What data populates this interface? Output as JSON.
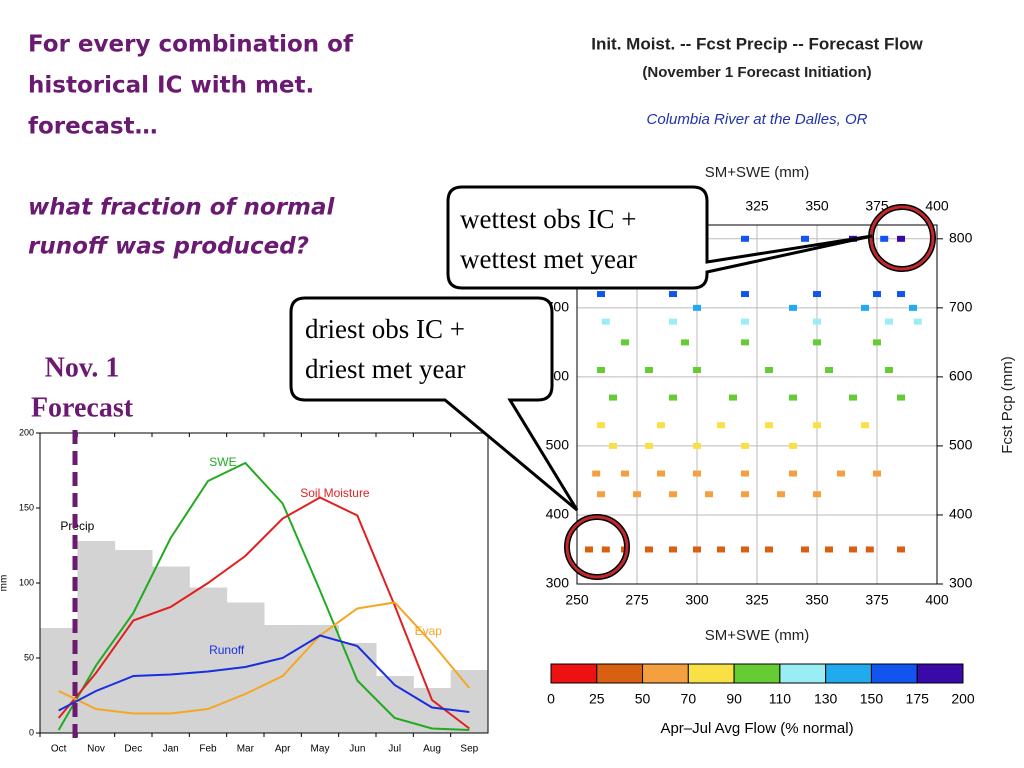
{
  "slide": {
    "heading": [
      "For every combination of",
      "historical IC with met.",
      "forecast…"
    ],
    "question": [
      "what fraction of normal",
      "runoff was produced?"
    ],
    "forecast_label": [
      "Nov. 1",
      "Forecast"
    ],
    "callouts": [
      {
        "lines": [
          "wettest obs IC +",
          "wettest met year"
        ]
      },
      {
        "lines": [
          "driest obs IC +",
          "driest met year"
        ]
      }
    ]
  },
  "chart_data": [
    {
      "type": "line",
      "categories": [
        "Oct",
        "Nov",
        "Dec",
        "Jan",
        "Feb",
        "Mar",
        "Apr",
        "May",
        "Jun",
        "Jul",
        "Aug",
        "Sep"
      ],
      "ylabel": "mm",
      "ylim": [
        0,
        200
      ],
      "yticks": [
        0,
        50,
        100,
        150,
        200
      ],
      "series": [
        {
          "name": "Precip",
          "kind": "step",
          "color": "#d3d3d3",
          "values": [
            70,
            128,
            122,
            111,
            97,
            87,
            72,
            72,
            60,
            38,
            30,
            42
          ]
        },
        {
          "name": "SWE",
          "color": "#22aa22",
          "values": [
            2,
            45,
            80,
            130,
            168,
            180,
            153,
            95,
            35,
            10,
            3,
            2
          ]
        },
        {
          "name": "Soil Moisture",
          "color": "#e02020",
          "values": [
            10,
            40,
            75,
            84,
            100,
            118,
            143,
            157,
            145,
            85,
            22,
            3
          ]
        },
        {
          "name": "Evap",
          "color": "#f5a623",
          "values": [
            28,
            16,
            13,
            13,
            16,
            26,
            38,
            65,
            83,
            87,
            60,
            30
          ]
        },
        {
          "name": "Runoff",
          "color": "#1a2ee0",
          "values": [
            15,
            28,
            38,
            39,
            41,
            44,
            50,
            65,
            58,
            32,
            17,
            14
          ]
        }
      ]
    },
    {
      "type": "scatter",
      "title": "Init. Moist. -- Fcst Precip -- Forecast Flow",
      "subtitle": "(November 1 Forecast Initiation)",
      "location": "Columbia River at the Dalles, OR",
      "xlabel": "SM+SWE (mm)",
      "ylabel": "Fcst Pcp (mm)",
      "xlim": [
        250,
        400
      ],
      "xticks": [
        250,
        275,
        300,
        325,
        350,
        375,
        400
      ],
      "ylim": [
        300,
        820
      ],
      "yticks": [
        300,
        400,
        500,
        600,
        700,
        800
      ],
      "grid": true,
      "series": [
        {
          "x": [
            255,
            262,
            270,
            280,
            290,
            300,
            310,
            320,
            330,
            345,
            355,
            365,
            372,
            385,
            260,
            275,
            290,
            305,
            320,
            335,
            350,
            258,
            270,
            285,
            300,
            320,
            340,
            360,
            375,
            265,
            280,
            300,
            320,
            340,
            260,
            285,
            310,
            330,
            350,
            370,
            265,
            290,
            315,
            340,
            365,
            385,
            260,
            280,
            300,
            330,
            355,
            380,
            270,
            295,
            320,
            350,
            375,
            262,
            290,
            320,
            350,
            380,
            392,
            300,
            340,
            370,
            390,
            260,
            290,
            320,
            350,
            375,
            385,
            262,
            290,
            320,
            345,
            365,
            378,
            385
          ],
          "y": [
            350,
            350,
            350,
            350,
            350,
            350,
            350,
            350,
            350,
            350,
            350,
            350,
            350,
            350,
            430,
            430,
            430,
            430,
            430,
            430,
            430,
            460,
            460,
            460,
            460,
            460,
            460,
            460,
            460,
            500,
            500,
            500,
            500,
            500,
            530,
            530,
            530,
            530,
            530,
            530,
            570,
            570,
            570,
            570,
            570,
            570,
            610,
            610,
            610,
            610,
            610,
            610,
            650,
            650,
            650,
            650,
            650,
            680,
            680,
            680,
            680,
            680,
            680,
            700,
            700,
            700,
            700,
            720,
            720,
            720,
            720,
            720,
            720,
            800,
            800,
            800,
            800,
            800,
            800,
            800
          ],
          "flow": [
            40,
            40,
            40,
            40,
            40,
            40,
            40,
            40,
            40,
            40,
            40,
            40,
            40,
            40,
            55,
            55,
            55,
            55,
            55,
            55,
            55,
            62,
            62,
            62,
            62,
            62,
            62,
            62,
            62,
            78,
            78,
            78,
            78,
            78,
            85,
            85,
            85,
            85,
            85,
            85,
            98,
            98,
            98,
            98,
            98,
            98,
            102,
            102,
            102,
            102,
            102,
            102,
            106,
            106,
            106,
            106,
            106,
            118,
            118,
            118,
            118,
            118,
            118,
            140,
            140,
            140,
            140,
            160,
            160,
            160,
            160,
            160,
            160,
            165,
            165,
            165,
            165,
            180,
            170,
            190
          ]
        }
      ],
      "colorbar": {
        "label": "Apr–Jul Avg Flow (% normal)",
        "bounds": [
          0,
          25,
          50,
          70,
          90,
          110,
          130,
          150,
          175,
          200
        ],
        "colors": [
          "#ee1111",
          "#d96010",
          "#f5a040",
          "#f9e045",
          "#66cc33",
          "#99eef5",
          "#22aaee",
          "#1155ee",
          "#3a0aa8"
        ]
      }
    }
  ]
}
